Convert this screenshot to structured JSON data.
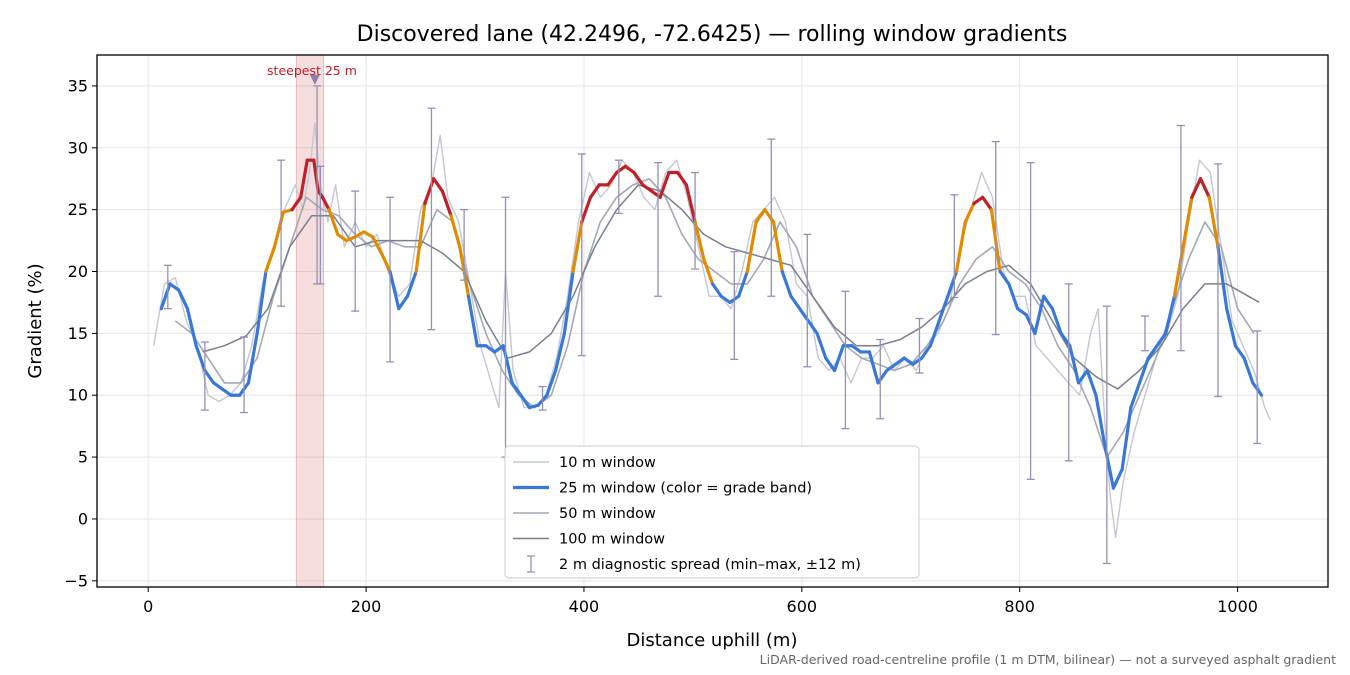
{
  "chart_data": {
    "type": "line",
    "title": "Discovered lane (42.2496, -72.6425) — rolling window gradients",
    "xlabel": "Distance uphill (m)",
    "ylabel": "Gradient (%)",
    "xlim": [
      -47,
      1083
    ],
    "ylim": [
      -5.5,
      37.5
    ],
    "xticks": [
      0,
      200,
      400,
      600,
      800,
      1000
    ],
    "yticks": [
      -5,
      0,
      5,
      10,
      15,
      20,
      25,
      30,
      35
    ],
    "ytick_labels": [
      "−5",
      "0",
      "5",
      "10",
      "15",
      "20",
      "25",
      "30",
      "35"
    ],
    "grid": true,
    "legend_position": "lower-center",
    "footnote": "LiDAR-derived road-centreline profile (1 m DTM, bilinear) — not a surveyed asphalt gradient",
    "steepest_band": {
      "label": "steepest 25 m",
      "x_start": 136,
      "x_end": 161,
      "marker_x": 153,
      "marker_y": 35.5
    },
    "grade_bands": [
      {
        "name": "below 20%",
        "min": -100,
        "max": 20,
        "color": "#3a78d6"
      },
      {
        "name": "20–25%",
        "min": 20,
        "max": 25,
        "color": "#e08c00"
      },
      {
        "name": "25% and above",
        "min": 25,
        "max": 100,
        "color": "#c0202a"
      }
    ],
    "series": [
      {
        "name": "10 m window",
        "color": "#c4c8d2",
        "x": [
          5,
          15,
          25,
          35,
          45,
          55,
          65,
          75,
          85,
          95,
          105,
          115,
          125,
          135,
          142,
          148,
          153,
          158,
          165,
          172,
          180,
          190,
          200,
          210,
          220,
          230,
          240,
          250,
          260,
          268,
          275,
          285,
          295,
          305,
          315,
          322,
          328,
          335,
          345,
          355,
          365,
          375,
          385,
          395,
          405,
          415,
          425,
          435,
          445,
          455,
          465,
          475,
          485,
          495,
          505,
          515,
          525,
          535,
          545,
          555,
          565,
          575,
          585,
          595,
          605,
          615,
          625,
          635,
          645,
          655,
          665,
          675,
          685,
          695,
          705,
          715,
          725,
          735,
          745,
          755,
          765,
          775,
          785,
          795,
          805,
          815,
          825,
          835,
          845,
          855,
          865,
          872,
          878,
          883,
          888,
          895,
          905,
          915,
          925,
          935,
          945,
          955,
          965,
          975,
          985,
          995,
          1005,
          1015,
          1025,
          1030
        ],
        "y": [
          14,
          19,
          19.5,
          16,
          14,
          10,
          9.5,
          10,
          11,
          14,
          19,
          22,
          25,
          27,
          25,
          28,
          32,
          27,
          24,
          27,
          22,
          24,
          22,
          23,
          20,
          18,
          19,
          25,
          27,
          31,
          26,
          24,
          19,
          14,
          11,
          9,
          20,
          12,
          9,
          9,
          10,
          13,
          18,
          24,
          28,
          26,
          27,
          29,
          28,
          26,
          25,
          28,
          29,
          26,
          22,
          18,
          18,
          17,
          20,
          24,
          25,
          26,
          24,
          19,
          18,
          13,
          12,
          13,
          11,
          13,
          13,
          14,
          12,
          13,
          12,
          14,
          15,
          17,
          22,
          25,
          28,
          26,
          20,
          18,
          18,
          14,
          13,
          12,
          11,
          10,
          15,
          17,
          8,
          2,
          -1.5,
          3,
          7,
          10,
          13,
          15,
          18,
          24,
          29,
          28,
          22,
          16,
          14,
          12,
          9,
          8
        ]
      },
      {
        "name": "25 m window (color = grade band)",
        "color": "#3a78d6",
        "x": [
          12,
          20,
          28,
          36,
          44,
          52,
          60,
          68,
          76,
          84,
          92,
          100,
          108,
          116,
          124,
          132,
          140,
          146,
          152,
          156,
          160,
          166,
          174,
          182,
          190,
          198,
          206,
          214,
          222,
          230,
          238,
          246,
          254,
          262,
          270,
          278,
          286,
          294,
          302,
          310,
          318,
          326,
          334,
          342,
          350,
          358,
          366,
          374,
          382,
          390,
          398,
          406,
          414,
          422,
          430,
          438,
          446,
          454,
          462,
          470,
          478,
          486,
          494,
          502,
          510,
          518,
          526,
          534,
          542,
          550,
          558,
          566,
          574,
          582,
          590,
          598,
          606,
          614,
          622,
          630,
          638,
          646,
          654,
          662,
          670,
          678,
          686,
          694,
          702,
          710,
          718,
          726,
          734,
          742,
          750,
          758,
          766,
          774,
          782,
          790,
          798,
          806,
          814,
          822,
          830,
          838,
          846,
          854,
          862,
          870,
          878,
          886,
          894,
          902,
          910,
          918,
          926,
          934,
          942,
          950,
          958,
          966,
          974,
          982,
          990,
          998,
          1006,
          1014,
          1022
        ],
        "y": [
          17,
          19,
          18.5,
          17,
          14,
          12,
          11,
          10.5,
          10,
          10,
          11,
          15,
          20,
          22,
          24.8,
          25,
          26,
          29,
          29,
          26.5,
          26,
          25,
          23,
          22.5,
          22.8,
          23.2,
          22.8,
          21.5,
          20,
          17,
          18,
          20,
          25.5,
          27.5,
          26.5,
          24.5,
          22,
          18,
          14,
          14,
          13.5,
          14,
          11,
          10,
          9,
          9.2,
          10,
          12,
          15,
          20,
          24,
          26,
          27,
          27,
          28,
          28.5,
          28,
          27,
          26.5,
          26,
          28,
          28,
          27,
          24,
          21,
          19,
          18,
          17.5,
          18,
          20,
          24,
          25,
          24,
          20,
          18,
          17,
          16,
          15,
          13,
          12,
          14,
          14,
          13.5,
          13.5,
          11,
          12,
          12.5,
          13,
          12.5,
          13,
          14,
          16,
          18,
          20,
          24,
          25.5,
          26,
          25,
          20,
          19,
          17,
          16.5,
          15,
          18,
          17,
          15,
          14,
          11,
          12,
          10,
          6,
          2.5,
          4,
          9,
          11,
          13,
          14,
          15,
          18,
          22,
          26,
          27.5,
          26,
          22,
          17,
          14,
          13,
          11,
          10
        ]
      },
      {
        "name": "50 m window",
        "color": "#a3a9b8",
        "x": [
          25,
          40,
          55,
          70,
          85,
          100,
          115,
          130,
          145,
          160,
          175,
          190,
          205,
          220,
          235,
          250,
          265,
          280,
          295,
          310,
          325,
          340,
          355,
          370,
          385,
          400,
          415,
          430,
          445,
          460,
          475,
          490,
          505,
          520,
          535,
          550,
          565,
          580,
          595,
          610,
          625,
          640,
          655,
          670,
          685,
          700,
          715,
          730,
          745,
          760,
          775,
          790,
          805,
          820,
          835,
          850,
          865,
          880,
          895,
          910,
          925,
          940,
          955,
          970,
          985,
          1000,
          1015
        ],
        "y": [
          16,
          15,
          13,
          11,
          11,
          13,
          18,
          22,
          26,
          25,
          24.5,
          23,
          22,
          22.5,
          22,
          22,
          25,
          24,
          19,
          15,
          12,
          10,
          9,
          10,
          14,
          20,
          24,
          26,
          27,
          27.5,
          26,
          23,
          21,
          20,
          19,
          19,
          21,
          24,
          22,
          18,
          16,
          14,
          13,
          12.5,
          12,
          12.5,
          14,
          16,
          19,
          21,
          22,
          20,
          19,
          17,
          14,
          12,
          9,
          5,
          7,
          10,
          13,
          17,
          21,
          24,
          22,
          17,
          15
        ]
      },
      {
        "name": "100 m window",
        "color": "#7a7f8e",
        "x": [
          50,
          70,
          90,
          110,
          130,
          150,
          170,
          190,
          210,
          230,
          250,
          270,
          290,
          310,
          330,
          350,
          370,
          390,
          410,
          430,
          450,
          470,
          490,
          510,
          530,
          550,
          570,
          590,
          610,
          630,
          650,
          670,
          690,
          710,
          730,
          750,
          770,
          790,
          810,
          830,
          850,
          870,
          890,
          910,
          930,
          950,
          970,
          990,
          1010,
          1020
        ],
        "y": [
          13.5,
          14,
          14.8,
          17,
          22,
          24.5,
          24.5,
          22,
          22.5,
          22.5,
          22.5,
          21.5,
          20,
          16,
          13,
          13.5,
          15,
          18,
          22,
          25,
          27,
          26.5,
          25,
          23,
          22,
          21.5,
          21,
          20.5,
          18,
          15.5,
          14,
          14,
          14.5,
          15.5,
          17,
          19,
          20,
          20.5,
          19,
          16,
          13,
          11.5,
          10.5,
          12,
          14,
          17,
          19,
          19,
          18,
          17.5
        ]
      }
    ],
    "error_bars": {
      "name": "2 m diagnostic spread (min–max, ±12 m)",
      "color": "#9590b5",
      "points": [
        {
          "x": 18,
          "low": 17,
          "high": 20.5
        },
        {
          "x": 52,
          "low": 8.8,
          "high": 14.3
        },
        {
          "x": 88,
          "low": 8.6,
          "high": 14.7
        },
        {
          "x": 122,
          "low": 17.2,
          "high": 29
        },
        {
          "x": 155,
          "low": 19,
          "high": 35
        },
        {
          "x": 158,
          "low": 19,
          "high": 28.5
        },
        {
          "x": 190,
          "low": 16.8,
          "high": 26.5
        },
        {
          "x": 222,
          "low": 12.7,
          "high": 26
        },
        {
          "x": 260,
          "low": 15.3,
          "high": 33.2
        },
        {
          "x": 290,
          "low": 19.3,
          "high": 25
        },
        {
          "x": 328,
          "low": 5,
          "high": 26
        },
        {
          "x": 362,
          "low": 8.8,
          "high": 10.7
        },
        {
          "x": 398,
          "low": 13.2,
          "high": 29.5
        },
        {
          "x": 432,
          "low": 24.7,
          "high": 29
        },
        {
          "x": 468,
          "low": 18,
          "high": 28.8
        },
        {
          "x": 502,
          "low": 20.2,
          "high": 28
        },
        {
          "x": 538,
          "low": 12.9,
          "high": 21.6
        },
        {
          "x": 572,
          "low": 18,
          "high": 30.7
        },
        {
          "x": 605,
          "low": 12.3,
          "high": 23
        },
        {
          "x": 640,
          "low": 7.3,
          "high": 18.4
        },
        {
          "x": 672,
          "low": 8.1,
          "high": 14.5
        },
        {
          "x": 708,
          "low": 11.8,
          "high": 16.2
        },
        {
          "x": 740,
          "low": 17.9,
          "high": 26.2
        },
        {
          "x": 778,
          "low": 14.9,
          "high": 30.5
        },
        {
          "x": 810,
          "low": 3.2,
          "high": 28.8
        },
        {
          "x": 845,
          "low": 4.7,
          "high": 19
        },
        {
          "x": 880,
          "low": -3.6,
          "high": 17.2
        },
        {
          "x": 915,
          "low": 13.6,
          "high": 16.4
        },
        {
          "x": 948,
          "low": 13.6,
          "high": 31.8
        },
        {
          "x": 982,
          "low": 9.9,
          "high": 28.7
        },
        {
          "x": 1018,
          "low": 6.1,
          "high": 15.2
        }
      ]
    }
  }
}
